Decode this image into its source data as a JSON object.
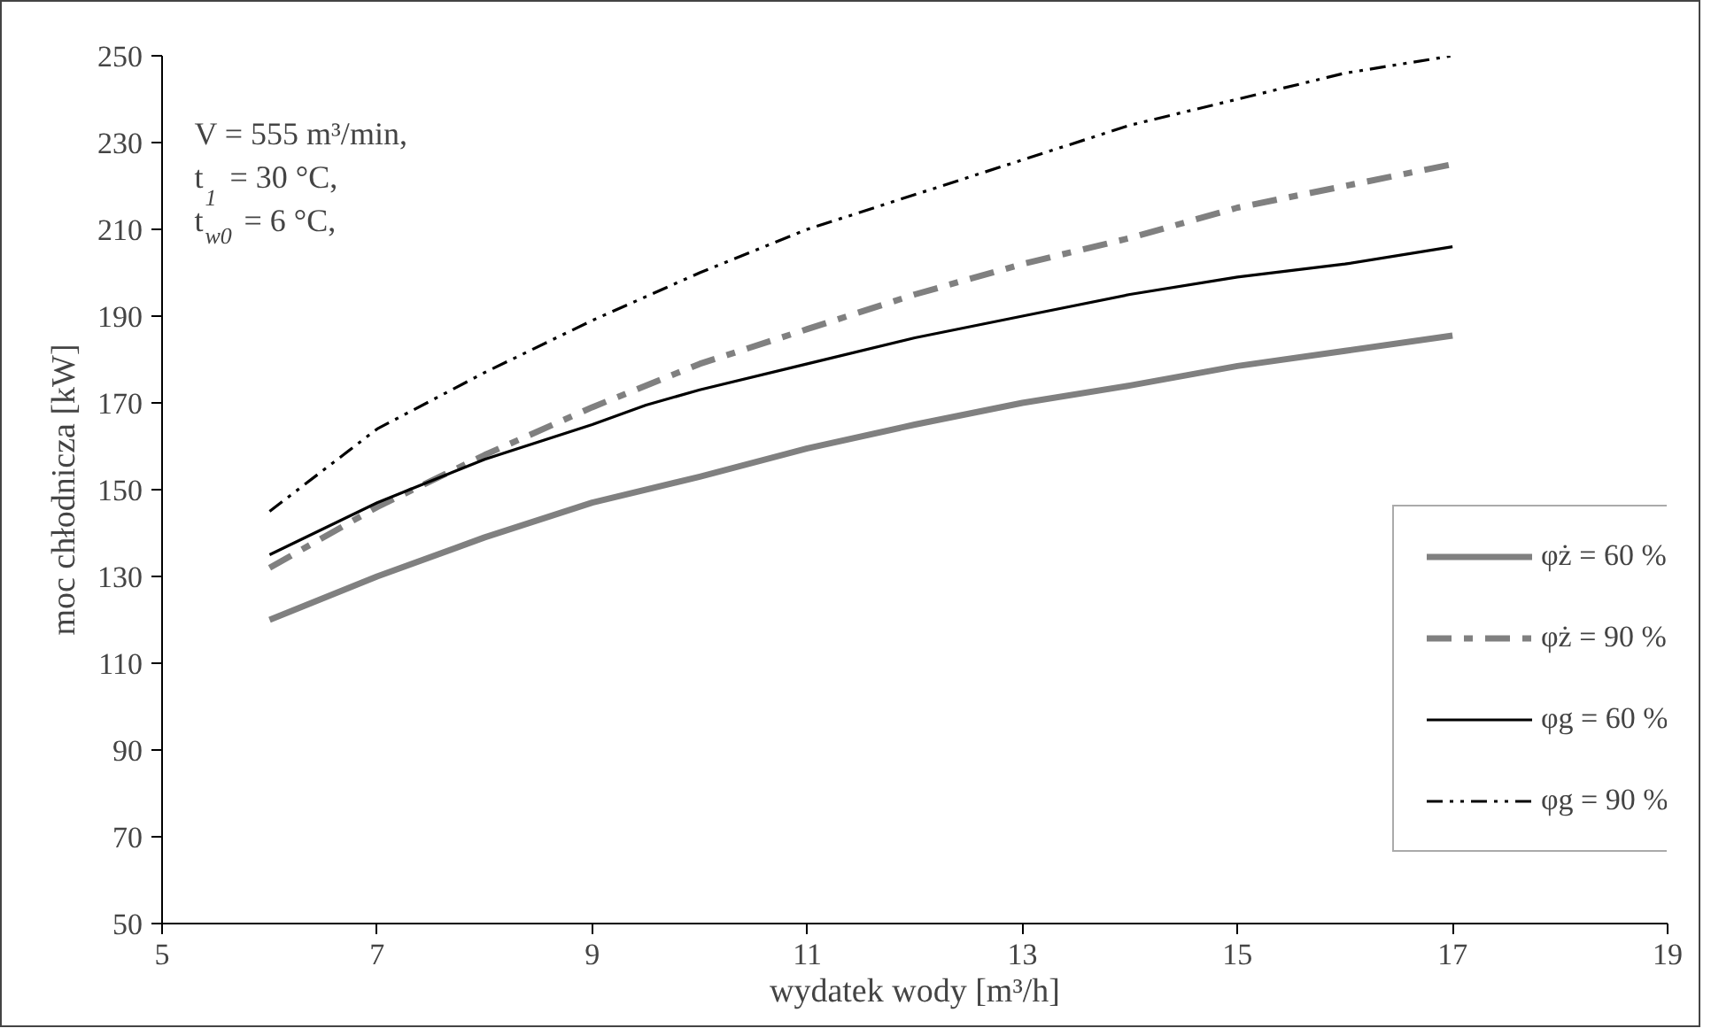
{
  "chart_data": {
    "type": "line",
    "xlabel": "wydatek wody [m³/h]",
    "ylabel": "moc chłodnicza [kW]",
    "annotations": [
      "V = 555 m³/min,",
      "t$_{1}$ = 30 °C,",
      "t$_{w0}$ = 6 °C,"
    ],
    "xlim": [
      5,
      19
    ],
    "xticks": [
      5,
      7,
      9,
      11,
      13,
      15,
      17,
      19
    ],
    "ylim": [
      50,
      250
    ],
    "yticks": [
      50,
      70,
      90,
      110,
      130,
      150,
      170,
      190,
      210,
      230,
      250
    ],
    "grid": false,
    "legend": "right",
    "marker": "none",
    "series": [
      {
        "name": "φż = 60 %",
        "color": "#808080",
        "line_style": "solid",
        "x": [
          6,
          7,
          8,
          9,
          10,
          11,
          12,
          13,
          14,
          15,
          16,
          17
        ],
        "values": [
          120,
          130,
          139,
          147,
          153,
          159.5,
          165,
          170,
          174,
          178.5,
          182,
          185.5
        ]
      },
      {
        "name": "φż = 90 %",
        "color": "#808080",
        "line_style": "dashed",
        "x": [
          6,
          7,
          8,
          9,
          10,
          11,
          12,
          13,
          14,
          15,
          16,
          17
        ],
        "values": [
          132,
          146,
          158,
          169,
          179,
          187,
          195,
          202,
          208,
          215,
          220,
          225
        ]
      },
      {
        "name": "φg = 60 %",
        "color": "#000000",
        "line_style": "solid",
        "x": [
          6,
          7,
          8,
          9,
          9.5,
          10,
          11,
          12,
          13,
          14,
          15,
          16,
          17
        ],
        "values": [
          135,
          147,
          157,
          165,
          169.5,
          173,
          179,
          185,
          190,
          195,
          199,
          202,
          206
        ]
      },
      {
        "name": "φg = 90 %",
        "color": "#000000",
        "line_style": "dotted",
        "x": [
          6,
          7,
          8,
          9,
          10,
          11,
          12,
          13,
          14,
          15,
          16,
          17
        ],
        "values": [
          145,
          164,
          177,
          189,
          200,
          210,
          218,
          226,
          234,
          240,
          246,
          250
        ]
      }
    ]
  }
}
